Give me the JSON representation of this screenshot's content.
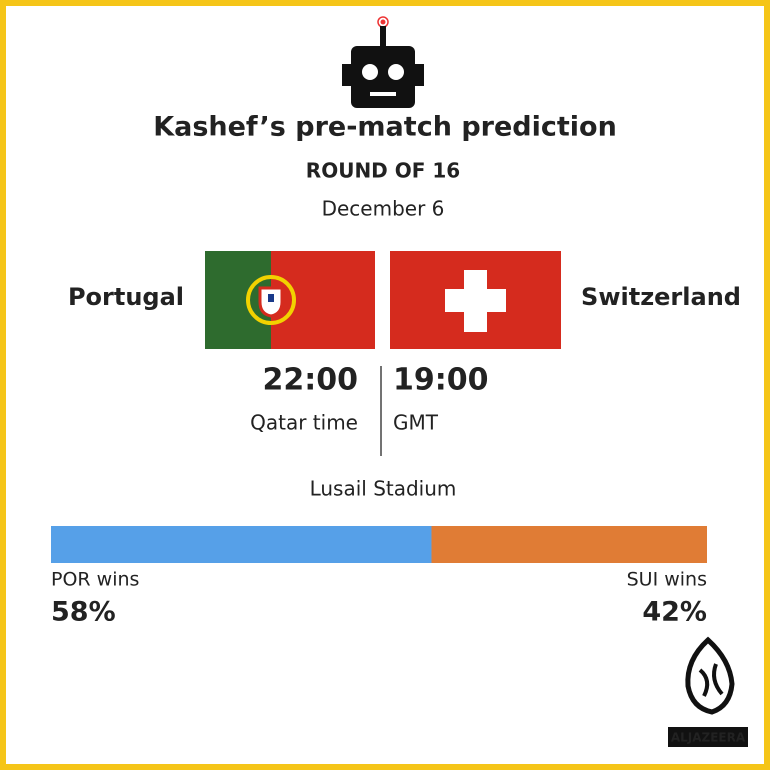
{
  "header": {
    "title": "Kashef’s pre-match prediction",
    "round": "ROUND OF 16",
    "date": "December 6"
  },
  "match": {
    "home": "Portugal",
    "away": "Switzerland",
    "times": [
      {
        "time": "22:00",
        "zone": "Qatar time"
      },
      {
        "time": "19:00",
        "zone": "GMT"
      }
    ],
    "venue": "Lusail Stadium"
  },
  "prediction": {
    "labels": [
      "POR wins",
      "SUI wins"
    ],
    "values": [
      58,
      42
    ],
    "value_labels": [
      "58%",
      "42%"
    ],
    "colors": [
      "#56a0e8",
      "#e07c35"
    ]
  },
  "logo": "ALJAZEERA"
}
